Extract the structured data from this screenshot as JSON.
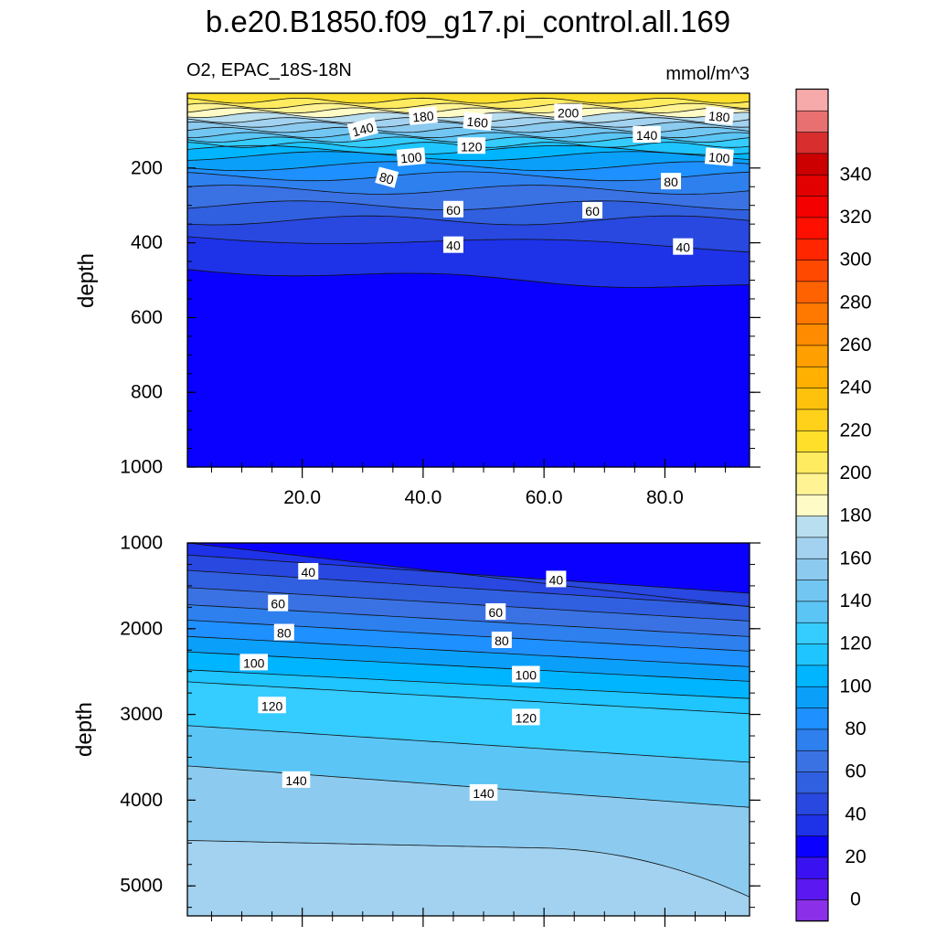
{
  "title": "b.e20.B1850.f09_g17.pi_control.all.169",
  "subtitle_left": "O2, EPAC_18S-18N",
  "subtitle_right": "mmol/m^3",
  "chart_data": [
    {
      "type": "contour",
      "panel": "upper",
      "ylabel": "depth",
      "ylim": [
        1000,
        0
      ],
      "xlim": [
        1,
        94
      ],
      "x_ticks": [
        "20.0",
        "40.0",
        "60.0",
        "80.0"
      ],
      "y_ticks": [
        "200",
        "400",
        "600",
        "800",
        "1000"
      ],
      "contour_levels": [
        40,
        60,
        80,
        100,
        120,
        140,
        160,
        180,
        200
      ],
      "contour_labels": [
        {
          "x": 30,
          "depth": 95,
          "text": "140",
          "angle": -15
        },
        {
          "x": 40,
          "depth": 60,
          "text": "180",
          "angle": -5
        },
        {
          "x": 49,
          "depth": 75,
          "text": "160",
          "angle": 5
        },
        {
          "x": 64,
          "depth": 50,
          "text": "200",
          "angle": 0
        },
        {
          "x": 89,
          "depth": 60,
          "text": "180",
          "angle": 5
        },
        {
          "x": 77,
          "depth": 110,
          "text": "140",
          "angle": 0
        },
        {
          "x": 38,
          "depth": 170,
          "text": "100",
          "angle": -5
        },
        {
          "x": 48,
          "depth": 140,
          "text": "120",
          "angle": 0
        },
        {
          "x": 89,
          "depth": 170,
          "text": "100",
          "angle": 5
        },
        {
          "x": 34,
          "depth": 225,
          "text": "80",
          "angle": 15
        },
        {
          "x": 81,
          "depth": 235,
          "text": "80",
          "angle": 0
        },
        {
          "x": 45,
          "depth": 310,
          "text": "60",
          "angle": 0
        },
        {
          "x": 68,
          "depth": 313,
          "text": "60",
          "angle": 0
        },
        {
          "x": 45,
          "depth": 405,
          "text": "40",
          "angle": 0
        },
        {
          "x": 83,
          "depth": 410,
          "text": "40",
          "angle": 0
        }
      ]
    },
    {
      "type": "contour",
      "panel": "lower",
      "ylabel": "depth",
      "ylim": [
        5350,
        1000
      ],
      "xlim": [
        1,
        94
      ],
      "y_ticks": [
        "1000",
        "2000",
        "3000",
        "4000",
        "5000"
      ],
      "contour_levels": [
        30,
        40,
        50,
        60,
        70,
        80,
        90,
        100,
        110,
        120,
        130,
        140,
        150
      ],
      "contour_labels": [
        {
          "x": 21,
          "depth": 1330,
          "text": "40",
          "angle": 0
        },
        {
          "x": 62,
          "depth": 1420,
          "text": "40",
          "angle": 0
        },
        {
          "x": 16,
          "depth": 1700,
          "text": "60",
          "angle": 0
        },
        {
          "x": 52,
          "depth": 1800,
          "text": "60",
          "angle": 0
        },
        {
          "x": 17,
          "depth": 2040,
          "text": "80",
          "angle": 0
        },
        {
          "x": 53,
          "depth": 2130,
          "text": "80",
          "angle": 0
        },
        {
          "x": 12,
          "depth": 2390,
          "text": "100",
          "angle": 0
        },
        {
          "x": 57,
          "depth": 2530,
          "text": "100",
          "angle": 0
        },
        {
          "x": 15,
          "depth": 2890,
          "text": "120",
          "angle": 0
        },
        {
          "x": 57,
          "depth": 3030,
          "text": "120",
          "angle": 0
        },
        {
          "x": 19,
          "depth": 3760,
          "text": "140",
          "angle": 0
        },
        {
          "x": 50,
          "depth": 3910,
          "text": "140",
          "angle": 0
        }
      ]
    }
  ],
  "colorbar": {
    "labels": [
      "0",
      "20",
      "40",
      "60",
      "80",
      "100",
      "120",
      "140",
      "160",
      "180",
      "200",
      "220",
      "240",
      "260",
      "280",
      "300",
      "320",
      "340"
    ],
    "colors": [
      "#8b30e8",
      "#5b18f0",
      "#3a12f2",
      "#0a00ff",
      "#1e32e8",
      "#2848e0",
      "#3060df",
      "#3a72e3",
      "#2e80ee",
      "#1e90ff",
      "#0aa0fa",
      "#00b5ff",
      "#1ec5ff",
      "#35ccff",
      "#5bc5f5",
      "#72c6f2",
      "#8ccbef",
      "#a2d2f0",
      "#b8deef",
      "#fffbc6",
      "#fff394",
      "#ffeb60",
      "#ffdf2a",
      "#ffd11a",
      "#ffc20c",
      "#ffb000",
      "#ffa000",
      "#ff8c00",
      "#ff7800",
      "#ff6200",
      "#ff4800",
      "#ff2600",
      "#ff0f00",
      "#f50000",
      "#e20000",
      "#cc0000",
      "#d82e2e",
      "#e87070",
      "#f6aaaa"
    ]
  }
}
